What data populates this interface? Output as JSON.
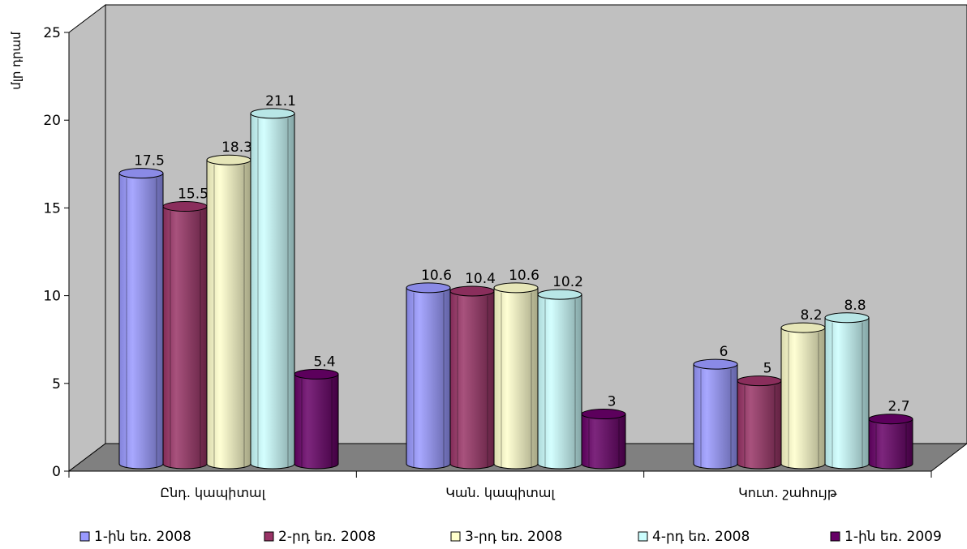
{
  "chart_data": {
    "type": "bar",
    "ylabel": "մլր դրամ",
    "ylim": [
      0,
      25
    ],
    "yticks": [
      0,
      5,
      10,
      15,
      20,
      25
    ],
    "categories": [
      "Ընդ. կապիտալ",
      "Կան. կապիտալ",
      "Կուտ. շահույթ"
    ],
    "series": [
      {
        "name": "1-ին եռ. 2008",
        "color": "#9999ff",
        "values": [
          17.5,
          10.6,
          6
        ]
      },
      {
        "name": "2-րդ եռ. 2008",
        "color": "#993366",
        "values": [
          15.5,
          10.4,
          5
        ]
      },
      {
        "name": "3-րդ եռ. 2008",
        "color": "#ffffcc",
        "values": [
          18.3,
          10.6,
          8.2
        ]
      },
      {
        "name": "4-րդ եռ. 2008",
        "color": "#ccffff",
        "values": [
          21.1,
          10.2,
          8.8
        ]
      },
      {
        "name": "1-ին եռ. 2009",
        "color": "#660066",
        "values": [
          5.4,
          3,
          2.7
        ]
      }
    ],
    "data_labels": [
      [
        "17.5",
        "10.6",
        "6"
      ],
      [
        "15.5",
        "10.4",
        "5"
      ],
      [
        "18.3",
        "10.6",
        "8.2"
      ],
      [
        "21.1",
        "10.2",
        "8.8"
      ],
      [
        "5.4",
        "3",
        "2.7"
      ]
    ],
    "legend_position": "bottom",
    "grid": false,
    "style": "3d-cylinder",
    "wall_color": "#c0c0c0",
    "floor_color": "#808080"
  }
}
